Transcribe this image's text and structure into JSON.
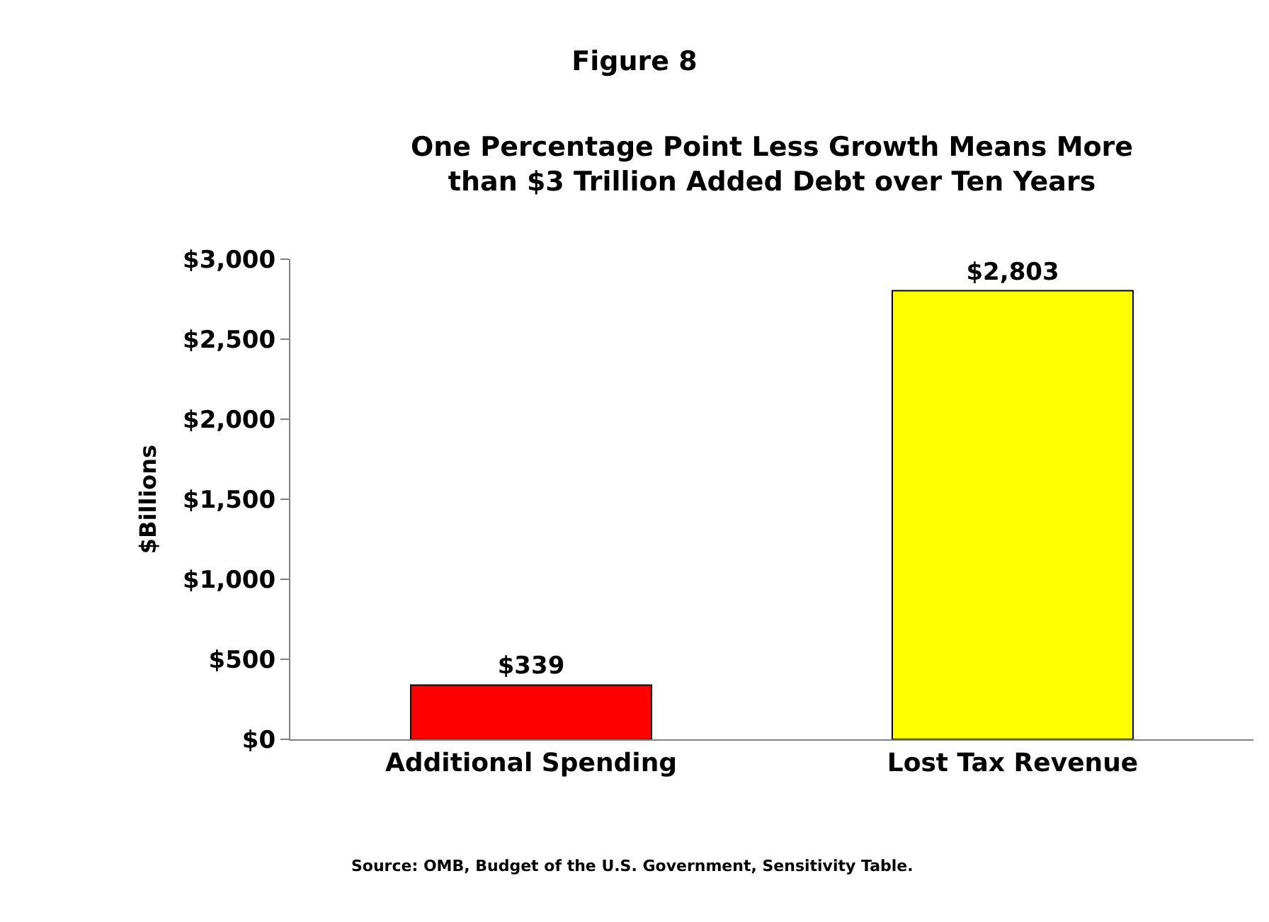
{
  "chart_data": {
    "type": "bar",
    "title": "Figure 8",
    "subtitle": "One Percentage Point Less Growth Means More\nthan $3 Trillion Added Debt over Ten Years",
    "ylabel": "$Billions",
    "categories": [
      "Additional Spending",
      "Lost Tax Revenue"
    ],
    "values": [
      339,
      2803
    ],
    "colors": [
      "#ff0000",
      "#ffff00"
    ],
    "value_labels": [
      "$339",
      "$2,803"
    ],
    "ylim": [
      0,
      3000
    ],
    "yticks": [
      {
        "value": 0,
        "label": "$0"
      },
      {
        "value": 500,
        "label": "$500"
      },
      {
        "value": 1000,
        "label": "$1,000"
      },
      {
        "value": 1500,
        "label": "$1,500"
      },
      {
        "value": 2000,
        "label": "$2,000"
      },
      {
        "value": 2500,
        "label": "$2,500"
      },
      {
        "value": 3000,
        "label": "$3,000"
      }
    ],
    "legend": false,
    "annotations": [
      "Source: OMB, Budget of the U.S. Government, Sensitivity Table."
    ]
  }
}
